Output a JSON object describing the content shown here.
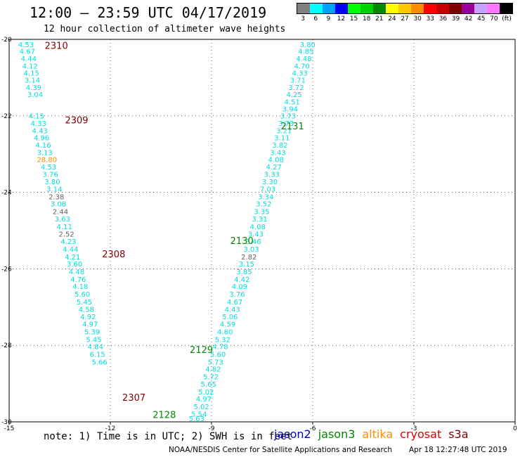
{
  "header": {
    "title": "12:00 – 23:59 UTC 04/17/2019",
    "subtitle": "12 hour collection of altimeter wave heights"
  },
  "legend": {
    "unit": "(ft)",
    "colors": [
      "#808080",
      "#00ffff",
      "#00a0ff",
      "#0000ff",
      "#00ff00",
      "#00d000",
      "#008800",
      "#ffff00",
      "#ffc800",
      "#ff8c00",
      "#ff0000",
      "#c80000",
      "#800000",
      "#9b009b",
      "#c8a0ff",
      "#ff78ff",
      "#000000"
    ],
    "labels": [
      "3",
      "6",
      "9",
      "12",
      "15",
      "18",
      "21",
      "24",
      "27",
      "30",
      "33",
      "36",
      "39",
      "42",
      "45",
      "70"
    ]
  },
  "footer": {
    "note": "note: 1) Time is in UTC; 2) SWH is in feet",
    "satellites": [
      {
        "name": "jason2",
        "color": "#0000cc"
      },
      {
        "name": "jason3",
        "color": "#008800"
      },
      {
        "name": "altika",
        "color": "#ff8c00"
      },
      {
        "name": "cryosat",
        "color": "#dd0000"
      },
      {
        "name": "s3a",
        "color": "#800000"
      }
    ],
    "credit": "NOAA/NESDIS Center for Satellite Applications and Research",
    "timestamp": "Apr 18 12:27:48 UTC 2019"
  },
  "chart_data": {
    "type": "scatter",
    "xlim": [
      -15,
      0
    ],
    "ylim": [
      -30,
      -20
    ],
    "xticks": [
      "-15",
      "-12",
      "-9",
      "-6",
      "-3",
      "0"
    ],
    "yticks": [
      "-20",
      "-22",
      "-24",
      "-26",
      "-28",
      "-30"
    ],
    "grid": true,
    "series": [
      {
        "satellite": "s3a",
        "label_color": "#800000",
        "passes": [
          {
            "label": "2310",
            "x": -13.6,
            "y": -20.25
          },
          {
            "label": "2309",
            "x": -13.0,
            "y": -22.2
          },
          {
            "label": "2308",
            "x": -11.9,
            "y": -25.7
          },
          {
            "label": "2307",
            "x": -11.3,
            "y": -29.45
          }
        ],
        "points": [
          {
            "x": -14.5,
            "y": -20.2,
            "v": 4.53
          },
          {
            "x": -14.46,
            "y": -20.38,
            "v": 4.67
          },
          {
            "x": -14.42,
            "y": -20.57,
            "v": 4.44
          },
          {
            "x": -14.38,
            "y": -20.76,
            "v": 4.12
          },
          {
            "x": -14.34,
            "y": -20.95,
            "v": 4.15
          },
          {
            "x": -14.31,
            "y": -21.13,
            "v": 3.14
          },
          {
            "x": -14.27,
            "y": -21.32,
            "v": 4.39
          },
          {
            "x": -14.23,
            "y": -21.51,
            "v": 3.04
          },
          {
            "x": -14.19,
            "y": -22.07,
            "v": 4.15
          },
          {
            "x": -14.13,
            "y": -22.26,
            "v": 4.33
          },
          {
            "x": -14.09,
            "y": -22.45,
            "v": 4.43
          },
          {
            "x": -14.04,
            "y": -22.64,
            "v": 4.96
          },
          {
            "x": -13.99,
            "y": -22.83,
            "v": 4.16
          },
          {
            "x": -13.94,
            "y": -23.02,
            "v": 3.13
          },
          {
            "x": -13.88,
            "y": -23.21,
            "v": 28.8,
            "color": "#ff8c00"
          },
          {
            "x": -13.83,
            "y": -23.4,
            "v": 4.53
          },
          {
            "x": -13.78,
            "y": -23.59,
            "v": 3.76
          },
          {
            "x": -13.72,
            "y": -23.79,
            "v": 3.8
          },
          {
            "x": -13.66,
            "y": -23.98,
            "v": 3.14
          },
          {
            "x": -13.6,
            "y": -24.18,
            "v": 2.38,
            "color": "#606060"
          },
          {
            "x": -13.54,
            "y": -24.37,
            "v": 3.08
          },
          {
            "x": -13.48,
            "y": -24.57,
            "v": 2.44,
            "color": "#606060"
          },
          {
            "x": -13.42,
            "y": -24.76,
            "v": 3.63
          },
          {
            "x": -13.36,
            "y": -24.96,
            "v": 4.11
          },
          {
            "x": -13.3,
            "y": -25.16,
            "v": 2.52,
            "color": "#606060"
          },
          {
            "x": -13.24,
            "y": -25.35,
            "v": 4.23
          },
          {
            "x": -13.18,
            "y": -25.55,
            "v": 4.44
          },
          {
            "x": -13.12,
            "y": -25.75,
            "v": 4.21
          },
          {
            "x": -13.06,
            "y": -25.94,
            "v": 3.6
          },
          {
            "x": -13.0,
            "y": -26.14,
            "v": 4.48
          },
          {
            "x": -12.95,
            "y": -26.34,
            "v": 4.76
          },
          {
            "x": -12.89,
            "y": -26.53,
            "v": 4.18
          },
          {
            "x": -12.83,
            "y": -26.73,
            "v": 5.6
          },
          {
            "x": -12.77,
            "y": -26.93,
            "v": 5.45
          },
          {
            "x": -12.71,
            "y": -27.12,
            "v": 4.58
          },
          {
            "x": -12.66,
            "y": -27.32,
            "v": 4.92
          },
          {
            "x": -12.6,
            "y": -27.51,
            "v": 4.97
          },
          {
            "x": -12.54,
            "y": -27.71,
            "v": 5.39
          },
          {
            "x": -12.49,
            "y": -27.91,
            "v": 5.45
          },
          {
            "x": -12.44,
            "y": -28.1,
            "v": 4.84
          },
          {
            "x": -12.38,
            "y": -28.3,
            "v": 6.15
          },
          {
            "x": -12.32,
            "y": -28.5,
            "v": 5.66
          }
        ]
      },
      {
        "satellite": "jason3",
        "label_color": "#008800",
        "passes": [
          {
            "label": "2131",
            "x": -6.6,
            "y": -22.35
          },
          {
            "label": "2130",
            "x": -8.1,
            "y": -25.35
          },
          {
            "label": "2129",
            "x": -9.3,
            "y": -28.2
          },
          {
            "label": "2128",
            "x": -10.4,
            "y": -29.9
          }
        ],
        "points": [
          {
            "x": -6.15,
            "y": -20.2,
            "v": 3.8
          },
          {
            "x": -6.2,
            "y": -20.38,
            "v": 4.85
          },
          {
            "x": -6.26,
            "y": -20.57,
            "v": 4.48
          },
          {
            "x": -6.32,
            "y": -20.76,
            "v": 4.7
          },
          {
            "x": -6.38,
            "y": -20.95,
            "v": 4.33
          },
          {
            "x": -6.44,
            "y": -21.13,
            "v": 3.71
          },
          {
            "x": -6.49,
            "y": -21.32,
            "v": 3.72
          },
          {
            "x": -6.55,
            "y": -21.51,
            "v": 4.25
          },
          {
            "x": -6.61,
            "y": -21.7,
            "v": 4.51
          },
          {
            "x": -6.67,
            "y": -21.88,
            "v": 3.94
          },
          {
            "x": -6.73,
            "y": -22.07,
            "v": 3.73
          },
          {
            "x": -6.79,
            "y": -22.26,
            "v": 3.73
          },
          {
            "x": -6.85,
            "y": -22.45,
            "v": 3.21
          },
          {
            "x": -6.91,
            "y": -22.64,
            "v": 3.11
          },
          {
            "x": -6.97,
            "y": -22.83,
            "v": 3.82
          },
          {
            "x": -7.03,
            "y": -23.02,
            "v": 3.43
          },
          {
            "x": -7.09,
            "y": -23.21,
            "v": 4.08
          },
          {
            "x": -7.15,
            "y": -23.4,
            "v": 4.27
          },
          {
            "x": -7.21,
            "y": -23.59,
            "v": 3.33
          },
          {
            "x": -7.27,
            "y": -23.79,
            "v": 3.3
          },
          {
            "x": -7.33,
            "y": -23.98,
            "v": 7.03
          },
          {
            "x": -7.39,
            "y": -24.18,
            "v": 3.34
          },
          {
            "x": -7.45,
            "y": -24.37,
            "v": 3.52
          },
          {
            "x": -7.51,
            "y": -24.57,
            "v": 3.35
          },
          {
            "x": -7.57,
            "y": -24.76,
            "v": 3.31
          },
          {
            "x": -7.63,
            "y": -24.96,
            "v": 4.08
          },
          {
            "x": -7.69,
            "y": -25.16,
            "v": 3.43
          },
          {
            "x": -7.76,
            "y": -25.35,
            "v": 3.46
          },
          {
            "x": -7.82,
            "y": -25.55,
            "v": 3.03
          },
          {
            "x": -7.89,
            "y": -25.75,
            "v": 2.82,
            "color": "#606060"
          },
          {
            "x": -7.96,
            "y": -25.94,
            "v": 3.15
          },
          {
            "x": -8.03,
            "y": -26.14,
            "v": 3.85
          },
          {
            "x": -8.1,
            "y": -26.34,
            "v": 4.42
          },
          {
            "x": -8.17,
            "y": -26.53,
            "v": 4.09
          },
          {
            "x": -8.24,
            "y": -26.73,
            "v": 3.76
          },
          {
            "x": -8.31,
            "y": -26.93,
            "v": 4.67
          },
          {
            "x": -8.38,
            "y": -27.12,
            "v": 4.43
          },
          {
            "x": -8.45,
            "y": -27.32,
            "v": 5.06
          },
          {
            "x": -8.52,
            "y": -27.51,
            "v": 4.59
          },
          {
            "x": -8.6,
            "y": -27.71,
            "v": 4.8
          },
          {
            "x": -8.67,
            "y": -27.91,
            "v": 5.32
          },
          {
            "x": -8.74,
            "y": -28.1,
            "v": 4.78
          },
          {
            "x": -8.81,
            "y": -28.3,
            "v": 5.6
          },
          {
            "x": -8.88,
            "y": -28.5,
            "v": 5.73
          },
          {
            "x": -8.95,
            "y": -28.69,
            "v": 4.82
          },
          {
            "x": -9.02,
            "y": -28.89,
            "v": 5.72
          },
          {
            "x": -9.09,
            "y": -29.08,
            "v": 5.65
          },
          {
            "x": -9.16,
            "y": -29.28,
            "v": 5.02
          },
          {
            "x": -9.23,
            "y": -29.47,
            "v": 4.97
          },
          {
            "x": -9.3,
            "y": -29.67,
            "v": 5.02
          },
          {
            "x": -9.37,
            "y": -29.86,
            "v": 5.54
          },
          {
            "x": -9.44,
            "y": -29.98,
            "v": 5.63
          }
        ]
      }
    ]
  }
}
